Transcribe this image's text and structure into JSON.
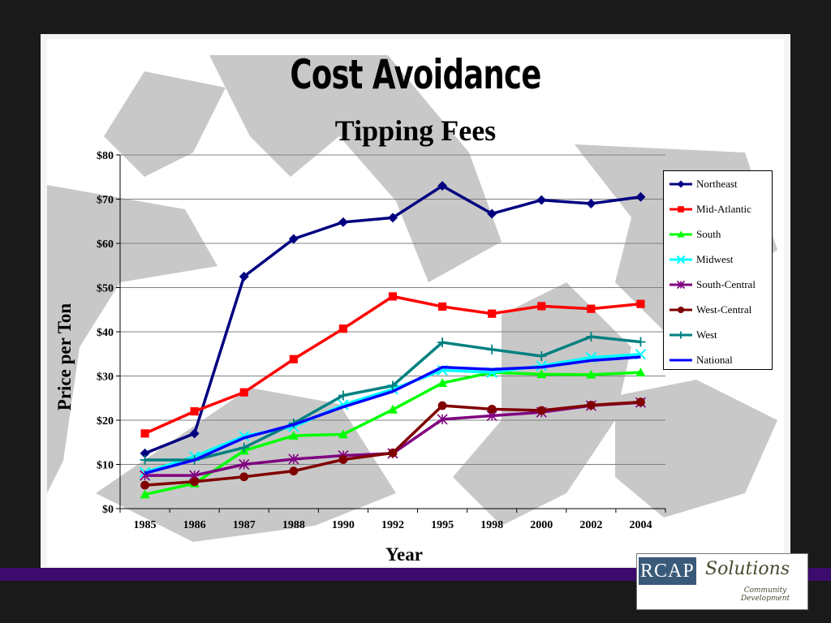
{
  "slide": {
    "title": "Cost Avoidance",
    "logo": {
      "primary": "RCAP",
      "secondary": "Solutions",
      "tagline_1": "Community",
      "tagline_2": "Development"
    },
    "colors": {
      "background": "#1a1a1a",
      "accent_band": "#3d0b6e",
      "watermark": "#c8c8c8"
    }
  },
  "chart_data": {
    "type": "line",
    "title": "Tipping Fees",
    "xlabel": "Year",
    "ylabel": "Price per Ton",
    "categories": [
      "1985",
      "1986",
      "1987",
      "1988",
      "1990",
      "1992",
      "1995",
      "1998",
      "2000",
      "2002",
      "2004"
    ],
    "ylim": [
      0,
      80
    ],
    "yticks": [
      "$0",
      "$10",
      "$20",
      "$30",
      "$40",
      "$50",
      "$60",
      "$70",
      "$80"
    ],
    "grid": true,
    "legend_position": "right",
    "series": [
      {
        "name": "Northeast",
        "color": "#000080",
        "marker": "diamond",
        "values": [
          12.5,
          17,
          52.5,
          61,
          64.8,
          65.8,
          73,
          66.7,
          69.8,
          69,
          70.5
        ]
      },
      {
        "name": "Mid-Atlantic",
        "color": "#ff0000",
        "marker": "square",
        "values": [
          17,
          22,
          26.3,
          33.8,
          40.7,
          48,
          45.7,
          44.1,
          45.8,
          45.2,
          46.3
        ]
      },
      {
        "name": "South",
        "color": "#00ff00",
        "marker": "triangle",
        "values": [
          3.2,
          5.7,
          13.1,
          16.5,
          16.8,
          22.4,
          28.4,
          30.8,
          30.4,
          30.3,
          30.8
        ]
      },
      {
        "name": "Midwest",
        "color": "#00ffff",
        "marker": "x",
        "values": [
          8.2,
          11.8,
          16.4,
          18.5,
          23.5,
          27,
          31.3,
          30.8,
          32.3,
          34.2,
          34.9
        ]
      },
      {
        "name": "South-Central",
        "color": "#800080",
        "marker": "star",
        "values": [
          7.5,
          7.5,
          10,
          11.2,
          12,
          12.5,
          20.2,
          21,
          21.8,
          23.3,
          24
        ]
      },
      {
        "name": "West-Central",
        "color": "#800000",
        "marker": "circle",
        "values": [
          5.3,
          6.1,
          7.2,
          8.5,
          11.1,
          12.6,
          23.3,
          22.5,
          22.2,
          23.4,
          24.1
        ]
      },
      {
        "name": "West",
        "color": "#008080",
        "marker": "plus",
        "values": [
          11,
          11,
          13.8,
          19.3,
          25.6,
          27.8,
          37.6,
          36,
          34.5,
          38.9,
          37.7
        ]
      },
      {
        "name": "National",
        "color": "#0000ff",
        "marker": "none",
        "values": [
          8,
          11,
          16,
          19,
          23,
          26.5,
          32,
          31.5,
          32,
          33.5,
          34.3
        ]
      }
    ]
  }
}
